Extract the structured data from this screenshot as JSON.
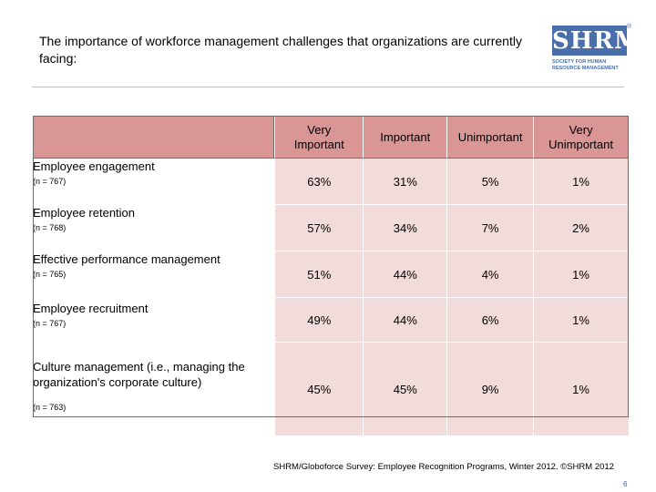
{
  "title": "The importance of workforce management challenges that organizations are currently facing:",
  "logo": {
    "mark": "SHRM",
    "registered": "®",
    "lines": [
      "SOCIETY FOR HUMAN",
      "RESOURCE MANAGEMENT"
    ],
    "color": "#4a6ea9"
  },
  "table": {
    "headers": [
      "Very Important",
      "Important",
      "Unimportant",
      "Very Unimportant"
    ],
    "rows": [
      {
        "label": "Employee engagement",
        "n": "(n = 767)",
        "values": [
          "63%",
          "31%",
          "5%",
          "1%"
        ]
      },
      {
        "label": "Employee retention",
        "n": "(n = 768)",
        "values": [
          "57%",
          "34%",
          "7%",
          "2%"
        ]
      },
      {
        "label": "Effective performance management",
        "n": "(n = 765)",
        "values": [
          "51%",
          "44%",
          "4%",
          "1%"
        ]
      },
      {
        "label": "Employee recruitment",
        "n": "(n = 767)",
        "values": [
          "49%",
          "44%",
          "6%",
          "1%"
        ]
      },
      {
        "label": "Culture management (i.e., managing the organization's corporate culture)",
        "n": "(n = 763)",
        "values": [
          "45%",
          "45%",
          "9%",
          "1%"
        ]
      }
    ],
    "header_color": "#d99694",
    "cell_color": "#f2dcdb"
  },
  "source": "SHRM/Globoforce Survey: Employee Recognition Programs, Winter 2012. ©SHRM 2012",
  "page_number": "6"
}
